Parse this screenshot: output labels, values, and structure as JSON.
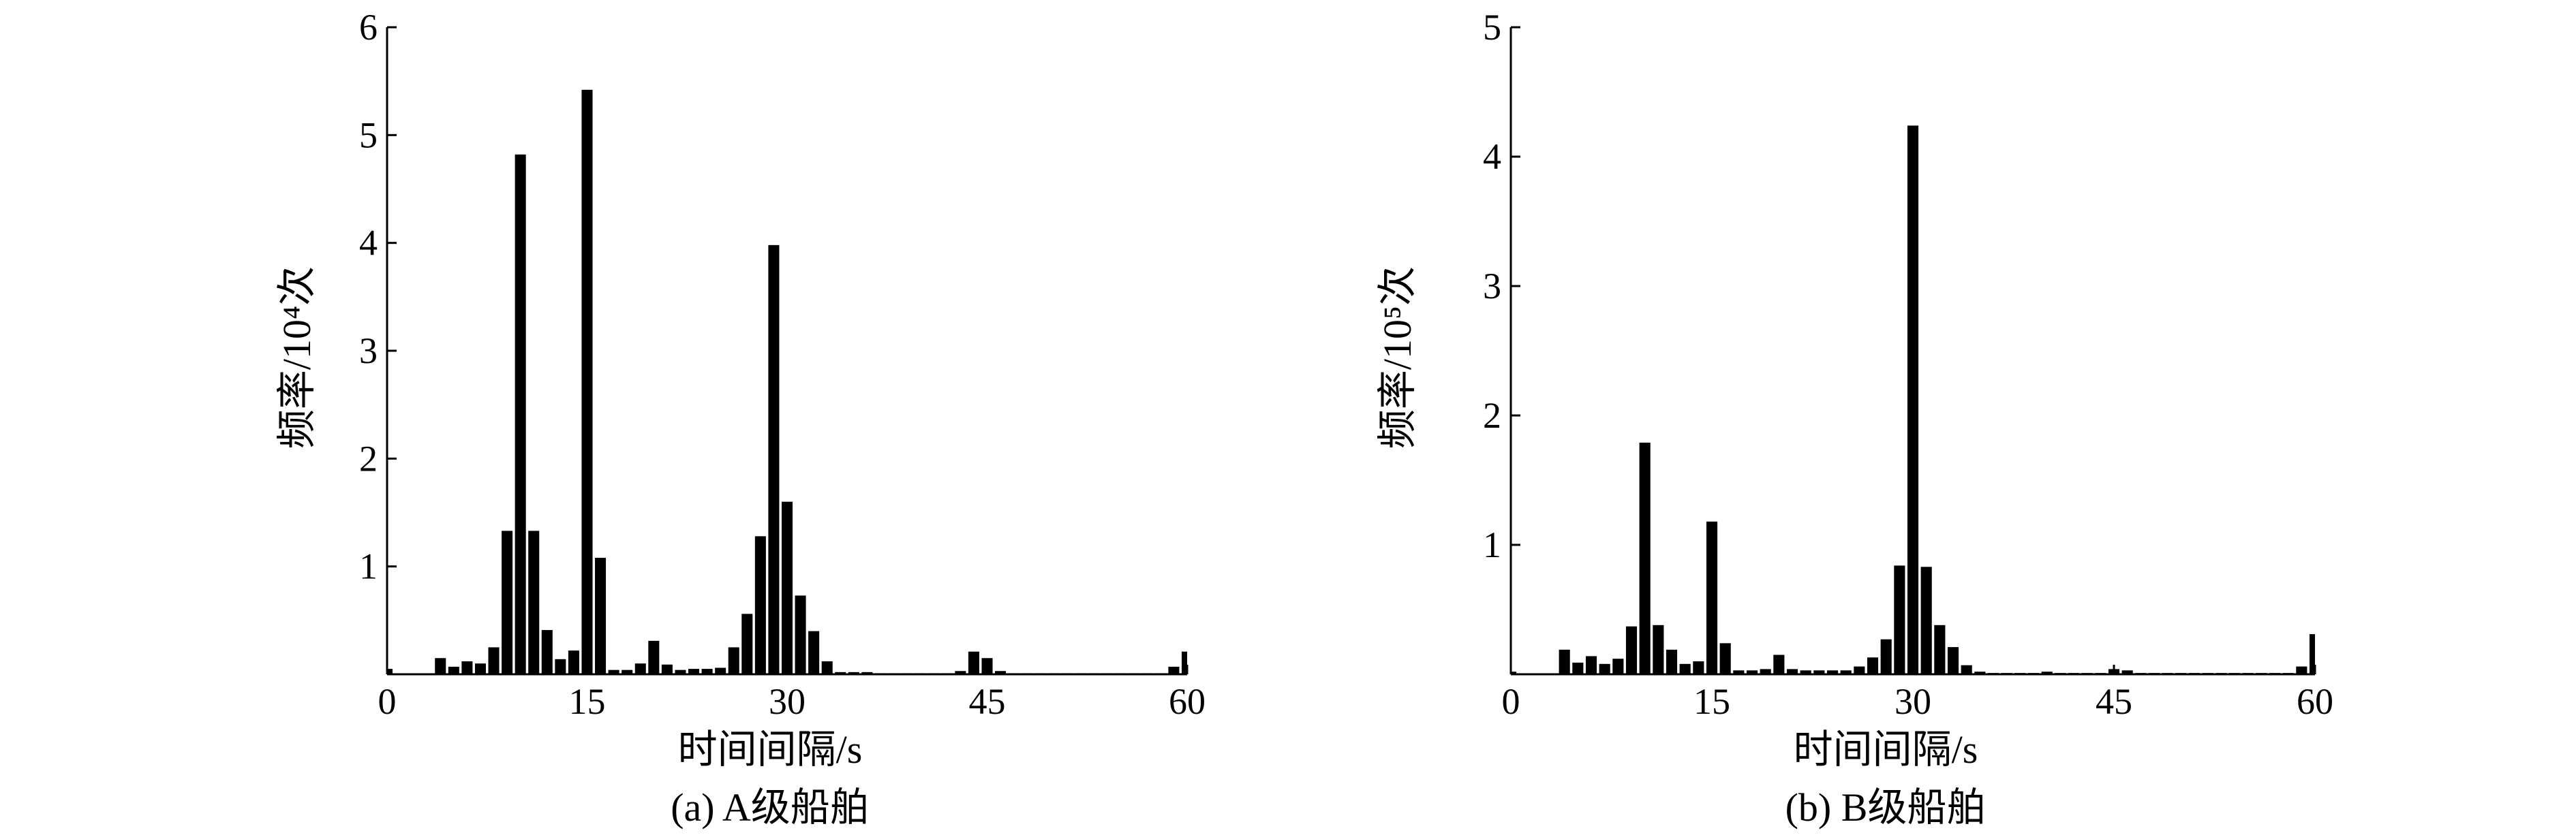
{
  "charts": [
    {
      "type": "bar",
      "caption": "(a) A级船舶",
      "xlabel": "时间间隔/s",
      "ylabel": "频率/10⁴次",
      "xlim": [
        0,
        60
      ],
      "ylim": [
        0,
        6
      ],
      "xticks": [
        0,
        15,
        30,
        45,
        60
      ],
      "yticks": [
        1,
        2,
        3,
        4,
        5,
        6
      ],
      "grid": false,
      "bar_color": "#000000",
      "x": [
        0,
        1,
        2,
        3,
        4,
        5,
        6,
        7,
        8,
        9,
        10,
        11,
        12,
        13,
        14,
        15,
        16,
        17,
        18,
        19,
        20,
        21,
        22,
        23,
        24,
        25,
        26,
        27,
        28,
        29,
        30,
        31,
        32,
        33,
        34,
        35,
        36,
        37,
        38,
        39,
        40,
        41,
        42,
        43,
        44,
        45,
        46,
        47,
        48,
        49,
        50,
        51,
        52,
        53,
        54,
        55,
        56,
        57,
        58,
        59,
        60
      ],
      "values": [
        0.05,
        0,
        0,
        0,
        0.15,
        0.07,
        0.12,
        0.1,
        0.25,
        1.33,
        4.82,
        1.33,
        0.41,
        0.14,
        0.22,
        5.42,
        1.08,
        0.04,
        0.04,
        0.1,
        0.31,
        0.09,
        0.04,
        0.05,
        0.05,
        0.06,
        0.25,
        0.56,
        1.28,
        3.98,
        1.6,
        0.73,
        0.4,
        0.12,
        0.02,
        0.02,
        0.02,
        0.01,
        0.01,
        0.01,
        0.01,
        0.01,
        0.01,
        0.03,
        0.21,
        0.15,
        0.03,
        0.01,
        0.01,
        0.01,
        0.01,
        0.01,
        0.01,
        0.01,
        0.01,
        0.01,
        0.01,
        0.01,
        0.01,
        0.07,
        0.21
      ]
    },
    {
      "type": "bar",
      "caption": "(b) B级船舶",
      "xlabel": "时间间隔/s",
      "ylabel": "频率/10⁵次",
      "xlim": [
        0,
        60
      ],
      "ylim": [
        0,
        5
      ],
      "xticks": [
        0,
        15,
        30,
        45,
        60
      ],
      "yticks": [
        1,
        2,
        3,
        4,
        5
      ],
      "grid": false,
      "bar_color": "#000000",
      "x": [
        0,
        1,
        2,
        3,
        4,
        5,
        6,
        7,
        8,
        9,
        10,
        11,
        12,
        13,
        14,
        15,
        16,
        17,
        18,
        19,
        20,
        21,
        22,
        23,
        24,
        25,
        26,
        27,
        28,
        29,
        30,
        31,
        32,
        33,
        34,
        35,
        36,
        37,
        38,
        39,
        40,
        41,
        42,
        43,
        44,
        45,
        46,
        47,
        48,
        49,
        50,
        51,
        52,
        53,
        54,
        55,
        56,
        57,
        58,
        59,
        60
      ],
      "values": [
        0.02,
        0,
        0,
        0,
        0.19,
        0.09,
        0.14,
        0.08,
        0.12,
        0.37,
        1.79,
        0.38,
        0.19,
        0.08,
        0.1,
        1.18,
        0.24,
        0.03,
        0.03,
        0.04,
        0.15,
        0.04,
        0.03,
        0.03,
        0.03,
        0.03,
        0.06,
        0.13,
        0.27,
        0.84,
        4.24,
        0.83,
        0.38,
        0.21,
        0.07,
        0.02,
        0.01,
        0.01,
        0.01,
        0.01,
        0.02,
        0.01,
        0.01,
        0.01,
        0.01,
        0.04,
        0.03,
        0.01,
        0.01,
        0.01,
        0.01,
        0.01,
        0.01,
        0.01,
        0.01,
        0.01,
        0.01,
        0.01,
        0.01,
        0.06,
        0.31
      ]
    }
  ]
}
